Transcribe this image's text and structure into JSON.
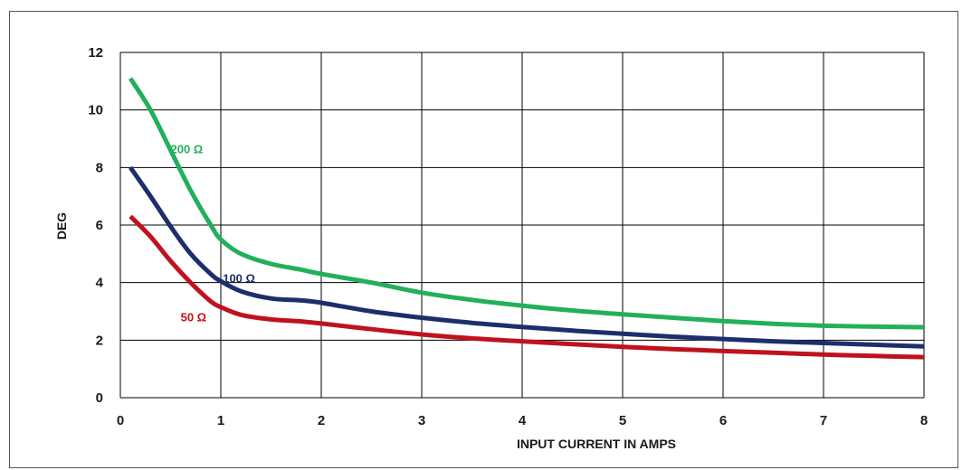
{
  "chart_data": {
    "type": "line",
    "xlabel": "INPUT CURRENT IN AMPS",
    "ylabel": "DEG",
    "xlim": [
      0,
      8
    ],
    "ylim": [
      0,
      12
    ],
    "xticks": [
      "0",
      "1",
      "2",
      "3",
      "4",
      "5",
      "6",
      "7",
      "8"
    ],
    "yticks": [
      "0",
      "2",
      "4",
      "6",
      "8",
      "10",
      "12"
    ],
    "grid": true,
    "legend": "inline",
    "series": [
      {
        "name": "200 Ω",
        "color": "#22b05a",
        "x": [
          0.1,
          0.3,
          0.5,
          0.7,
          0.9,
          1.0,
          1.2,
          1.5,
          1.8,
          2.0,
          2.5,
          3.0,
          3.5,
          4.0,
          4.5,
          5.0,
          5.5,
          6.0,
          6.5,
          7.0,
          7.5,
          8.0
        ],
        "y": [
          11.1,
          10.0,
          8.6,
          7.2,
          6.0,
          5.5,
          5.0,
          4.65,
          4.45,
          4.3,
          4.0,
          3.65,
          3.4,
          3.2,
          3.03,
          2.9,
          2.78,
          2.66,
          2.57,
          2.5,
          2.47,
          2.45
        ]
      },
      {
        "name": "100 Ω",
        "color": "#1c2e6b",
        "x": [
          0.1,
          0.3,
          0.5,
          0.7,
          0.9,
          1.0,
          1.2,
          1.5,
          1.8,
          2.0,
          2.5,
          3.0,
          3.5,
          4.0,
          4.5,
          5.0,
          5.5,
          6.0,
          6.5,
          7.0,
          7.5,
          8.0
        ],
        "y": [
          8.0,
          7.0,
          5.95,
          5.0,
          4.3,
          4.05,
          3.7,
          3.45,
          3.38,
          3.3,
          3.0,
          2.78,
          2.6,
          2.46,
          2.33,
          2.22,
          2.12,
          2.04,
          1.96,
          1.9,
          1.84,
          1.78
        ]
      },
      {
        "name": "50 Ω",
        "color": "#c0121e",
        "x": [
          0.1,
          0.3,
          0.5,
          0.7,
          0.9,
          1.0,
          1.2,
          1.5,
          1.8,
          2.0,
          2.5,
          3.0,
          3.5,
          4.0,
          4.5,
          5.0,
          5.5,
          6.0,
          6.5,
          7.0,
          7.5,
          8.0
        ],
        "y": [
          6.3,
          5.6,
          4.75,
          4.0,
          3.35,
          3.15,
          2.88,
          2.72,
          2.65,
          2.58,
          2.38,
          2.2,
          2.06,
          1.96,
          1.86,
          1.77,
          1.69,
          1.62,
          1.56,
          1.5,
          1.45,
          1.41
        ]
      }
    ]
  }
}
